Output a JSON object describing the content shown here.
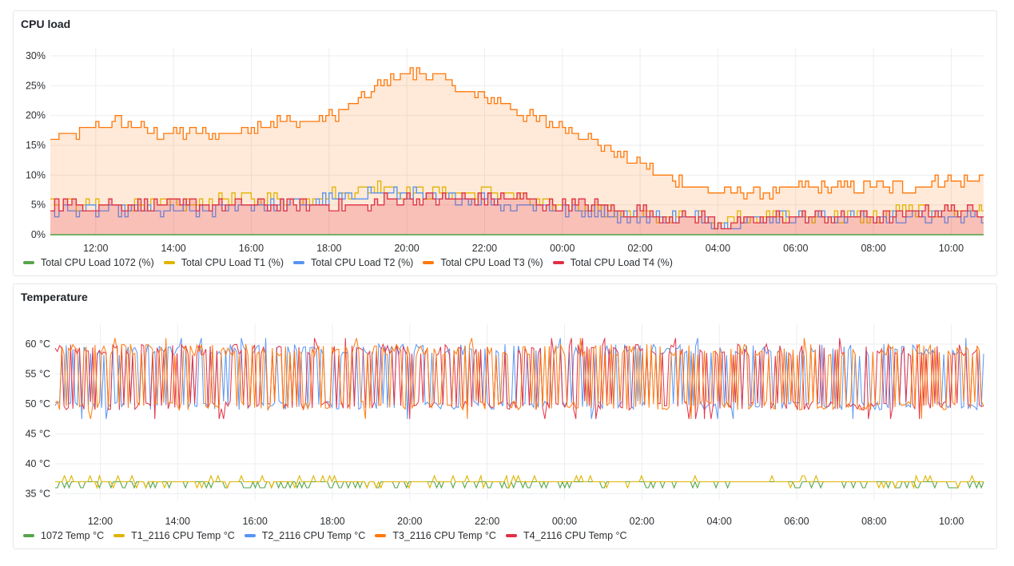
{
  "chart_data": [
    {
      "type": "area",
      "title": "CPU load",
      "ylim": [
        0,
        30
      ],
      "yticks": [
        "0%",
        "5%",
        "10%",
        "15%",
        "20%",
        "25%",
        "30%"
      ],
      "xticks": [
        "12:00",
        "14:00",
        "16:00",
        "18:00",
        "20:00",
        "22:00",
        "00:00",
        "02:00",
        "04:00",
        "06:00",
        "08:00",
        "10:00"
      ],
      "x": [
        "10:50",
        "11:30",
        "12:00",
        "12:30",
        "13:00",
        "13:30",
        "14:00",
        "14:30",
        "15:00",
        "15:30",
        "16:00",
        "16:30",
        "17:00",
        "17:30",
        "18:00",
        "18:30",
        "19:00",
        "19:30",
        "20:00",
        "20:30",
        "21:00",
        "21:30",
        "22:00",
        "22:30",
        "23:00",
        "23:30",
        "00:00",
        "00:30",
        "01:00",
        "01:30",
        "02:00",
        "02:30",
        "03:00",
        "03:30",
        "04:00",
        "04:30",
        "05:00",
        "05:30",
        "06:00",
        "06:30",
        "07:00",
        "07:30",
        "08:00",
        "08:30",
        "09:00",
        "09:30",
        "10:00",
        "10:30",
        "10:50"
      ],
      "grid": true,
      "legend_position": "bottom-left",
      "series": [
        {
          "name": "Total CPU Load 1072 (%)",
          "color": "#56a64b",
          "values": [
            0,
            0,
            0,
            0,
            0,
            0,
            0,
            0,
            0,
            0,
            0,
            0,
            0,
            0,
            0,
            0,
            0,
            0,
            0,
            0,
            0,
            0,
            0,
            0,
            0,
            0,
            0,
            0,
            0,
            0,
            0,
            0,
            0,
            0,
            0,
            0,
            0,
            0,
            0,
            0,
            0,
            0,
            0,
            0,
            0,
            0,
            0,
            0,
            0
          ]
        },
        {
          "name": "Total CPU Load T1 (%)",
          "color": "#e0b400",
          "values": [
            5,
            5,
            5,
            5,
            5,
            5,
            5,
            5,
            6,
            6,
            6,
            6,
            6,
            6,
            7,
            7,
            8,
            8,
            7,
            7,
            7,
            7,
            7,
            7,
            6,
            5,
            5,
            5,
            4,
            4,
            3,
            3,
            3,
            3,
            2,
            3,
            3,
            3,
            3,
            3,
            3,
            3,
            3,
            4,
            4,
            4,
            4,
            4,
            4
          ]
        },
        {
          "name": "Total CPU Load T2 (%)",
          "color": "#5794f2",
          "values": [
            4,
            4,
            4,
            4,
            4,
            4,
            4,
            4,
            4,
            5,
            5,
            5,
            5,
            5,
            6,
            6,
            7,
            7,
            7,
            6,
            6,
            6,
            6,
            5,
            5,
            5,
            4,
            4,
            4,
            3,
            3,
            3,
            3,
            3,
            2,
            2,
            3,
            3,
            3,
            3,
            3,
            3,
            3,
            3,
            3,
            3,
            3,
            3,
            3
          ]
        },
        {
          "name": "Total CPU Load T3 (%)",
          "color": "#ff780a",
          "values": [
            16,
            17,
            18,
            19,
            18,
            17,
            17,
            17,
            17,
            17,
            18,
            19,
            19,
            19,
            20,
            21,
            24,
            26,
            27,
            27,
            26,
            24,
            23,
            22,
            20,
            19,
            18,
            17,
            15,
            13,
            12,
            10,
            9,
            8,
            7,
            7,
            7,
            7,
            8,
            8,
            8,
            8,
            8,
            8,
            8,
            9,
            9,
            9,
            10
          ]
        },
        {
          "name": "Total CPU Load T4 (%)",
          "color": "#e02f44",
          "values": [
            5,
            5,
            5,
            5,
            5,
            5,
            5,
            5,
            5,
            5,
            5,
            5,
            5,
            5,
            5,
            5,
            5,
            6,
            6,
            6,
            6,
            6,
            6,
            6,
            6,
            5,
            5,
            5,
            5,
            4,
            4,
            3,
            3,
            3,
            2,
            2,
            2,
            3,
            3,
            3,
            3,
            3,
            3,
            3,
            4,
            4,
            4,
            4,
            4
          ]
        }
      ]
    },
    {
      "type": "line",
      "title": "Temperature",
      "ylim": [
        34,
        62
      ],
      "yticks": [
        "35 °C",
        "40 °C",
        "45 °C",
        "50 °C",
        "55 °C",
        "60 °C"
      ],
      "xticks": [
        "12:00",
        "14:00",
        "16:00",
        "18:00",
        "20:00",
        "22:00",
        "00:00",
        "02:00",
        "04:00",
        "06:00",
        "08:00",
        "10:00"
      ],
      "grid": true,
      "legend_position": "bottom-left",
      "series": [
        {
          "name": "1072 Temp °C",
          "color": "#56a64b",
          "range": [
            36,
            37
          ]
        },
        {
          "name": "T1_2116 CPU Temp °C",
          "color": "#e0b400",
          "range": [
            36,
            38
          ]
        },
        {
          "name": "T2_2116 CPU Temp °C",
          "color": "#5794f2",
          "range": [
            47,
            61
          ]
        },
        {
          "name": "T3_2116 CPU Temp °C",
          "color": "#ff780a",
          "range": [
            47,
            61
          ]
        },
        {
          "name": "T4_2116 CPU Temp °C",
          "color": "#e02f44",
          "range": [
            47,
            61
          ]
        }
      ]
    }
  ]
}
